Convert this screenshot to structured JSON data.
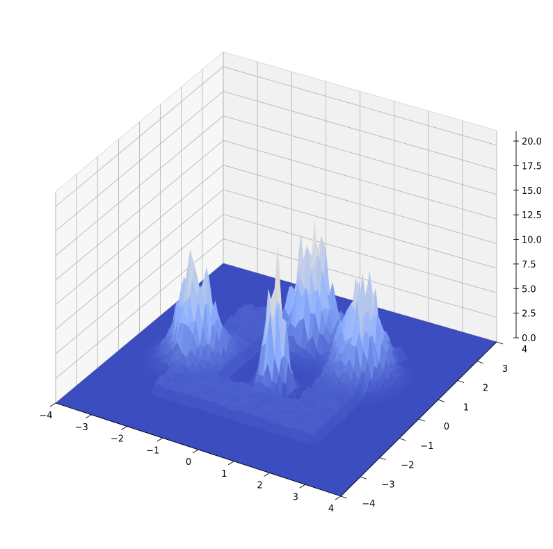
{
  "chart_data": {
    "type": "surface",
    "title": "",
    "xlabel": "",
    "ylabel": "",
    "zlabel": "",
    "colormap": "coolwarm",
    "grid": true,
    "xlim": [
      -4,
      4
    ],
    "ylim": [
      -4,
      4
    ],
    "zlim": [
      0,
      21
    ],
    "x_ticks": [
      "−4",
      "−3",
      "−2",
      "−1",
      "0",
      "1",
      "2",
      "3",
      "4"
    ],
    "y_ticks": [
      "−4",
      "−3",
      "−2",
      "−1",
      "0",
      "1",
      "2",
      "3",
      "4"
    ],
    "z_ticks": [
      "0.0",
      "2.5",
      "5.0",
      "7.5",
      "10.0",
      "12.5",
      "15.0",
      "17.5",
      "20.0"
    ],
    "peaks": [
      {
        "x": -2.2,
        "y": -0.4,
        "height": 9.8
      },
      {
        "x": 0.0,
        "y": 1.6,
        "height": 11.0
      },
      {
        "x": 1.8,
        "y": 1.0,
        "height": 10.0
      },
      {
        "x": 0.2,
        "y": -0.6,
        "height": 20.5
      }
    ],
    "ring_plateau_height": 1.0,
    "base_level": 0.0
  }
}
